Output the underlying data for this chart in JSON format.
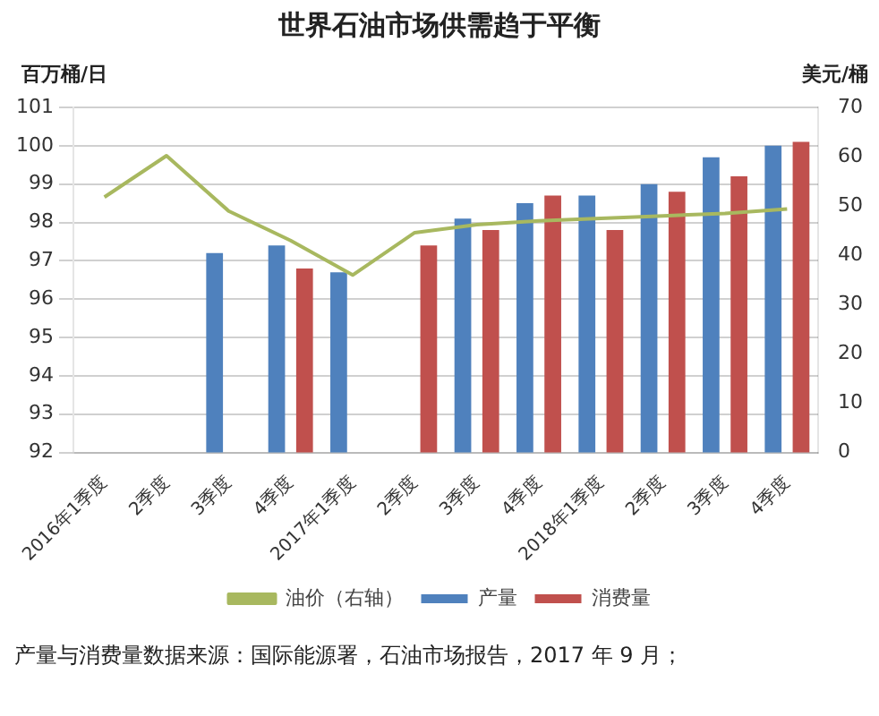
{
  "chart_data": {
    "type": "bar",
    "title": "世界石油市场供需趋于平衡",
    "categories": [
      "2016年1季度",
      "2季度",
      "3季度",
      "4季度",
      "2017年1季度",
      "2季度",
      "3季度",
      "4季度",
      "2018年1季度",
      "2季度",
      "3季度",
      "4季度"
    ],
    "series": [
      {
        "name": "产量",
        "color": "#4f81bd",
        "values": [
          null,
          null,
          97.2,
          97.4,
          96.7,
          null,
          98.1,
          98.5,
          98.7,
          99.0,
          99.7,
          100.0
        ]
      },
      {
        "name": "消费量",
        "color": "#c0504d",
        "values": [
          null,
          null,
          null,
          96.8,
          null,
          97.4,
          97.8,
          98.7,
          97.8,
          98.8,
          99.2,
          100.1
        ]
      },
      {
        "name": "油价（右轴）",
        "type": "line",
        "axis": "y2",
        "color": "#a8b85f",
        "values": [
          51.8,
          60.2,
          49,
          43,
          36,
          44.6,
          46.2,
          47,
          47.5,
          48,
          48.5,
          49.4
        ]
      }
    ],
    "ylabel": "百万桶/日",
    "y2label": "美元/桶",
    "ylim": [
      92,
      101
    ],
    "yticks": [
      92,
      93,
      94,
      95,
      96,
      97,
      98,
      99,
      100,
      101
    ],
    "y2lim": [
      0,
      70
    ],
    "y2ticks": [
      0,
      10,
      20,
      30,
      40,
      50,
      60,
      70
    ],
    "grid": "y",
    "legend": "bottom",
    "marker": "none",
    "line_style": "solid",
    "annotations": [
      "产量与消费量数据来源：国际能源署，石油市场报告，2017 年 9 月；"
    ]
  }
}
